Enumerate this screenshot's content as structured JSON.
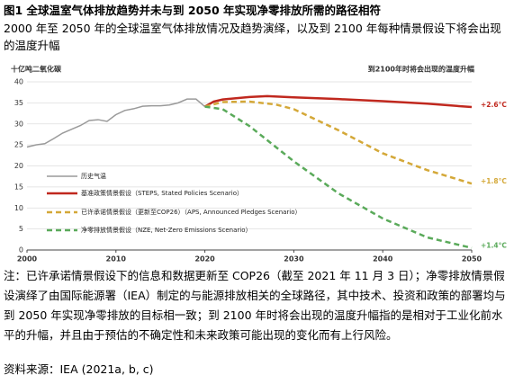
{
  "chart_data": {
    "type": "line",
    "title": "图1  全球温室气体排放趋势并未与到 2050 年实现净零排放所需的路径相符",
    "subtitle": "2000 年至 2050 年的全球温室气体排放情况及趋势演绎，以及到 2100 年每种情景假设下将会出现的温度升幅",
    "y_label": "十亿吨二氧化碳",
    "right_label": "到2100年时将会出现的温度升幅",
    "note": "注：已许承诺情景假设下的信息和数据更新至 COP26（截至 2021 年 11 月 3 日）；净零排放情景假设演绎了由国际能源署（IEA）制定的与能源排放相关的全球路径，其中技术、投资和政策的部署均与到 2050 年实现净零排放的目标相一致；到 2100 年时将会出现的温度升幅指的是相对于工业化前水平的升幅，并且由于预估的不确定性和未来政策可能出现的变化而有上行风险。",
    "source": "资料来源：IEA (2021a, b, c)",
    "xlim": [
      2000,
      2050
    ],
    "xticks": [
      2000,
      2010,
      2020,
      2030,
      2040,
      2050
    ],
    "ylim": [
      0,
      40
    ],
    "yticks": [
      0,
      5,
      10,
      15,
      20,
      25,
      30,
      35,
      40
    ],
    "grid": true,
    "series": [
      {
        "name": "历史气温",
        "color": "#9a9a9a",
        "dashed": false,
        "x": [
          2000,
          2001,
          2002,
          2003,
          2004,
          2005,
          2006,
          2007,
          2008,
          2009,
          2010,
          2011,
          2012,
          2013,
          2014,
          2015,
          2016,
          2017,
          2018,
          2019,
          2020
        ],
        "values": [
          24.5,
          25,
          25.3,
          26.5,
          27.8,
          28.7,
          29.6,
          30.8,
          31,
          30.6,
          32.2,
          33.2,
          33.6,
          34.2,
          34.3,
          34.3,
          34.5,
          35,
          35.9,
          35.9,
          34.1
        ]
      },
      {
        "name": "基准政策情景假设（STEPS, Stated Policies Scenario）",
        "color": "#c0281e",
        "dashed": false,
        "end_label": "+2.6°C",
        "x": [
          2020,
          2021,
          2022,
          2025,
          2027,
          2030,
          2035,
          2040,
          2045,
          2050
        ],
        "values": [
          34.1,
          35.3,
          35.8,
          36.4,
          36.6,
          36.3,
          35.9,
          35.4,
          34.8,
          34.0
        ]
      },
      {
        "name": "已许承诺情景假设（更新至COP26）（APS, Announced Pledges Scenario）",
        "color": "#d4a838",
        "dashed": true,
        "end_label": "+1.8°C",
        "x": [
          2020,
          2022,
          2025,
          2028,
          2030,
          2035,
          2040,
          2045,
          2050
        ],
        "values": [
          34.1,
          35.2,
          35.3,
          34.6,
          33.5,
          28.5,
          23,
          19,
          15.8
        ]
      },
      {
        "name": "净零排放情景假设（NZE, Net-Zero Emissions Scenario）",
        "color": "#5aaa5a",
        "dashed": true,
        "end_label": "+1.4°C",
        "x": [
          2020,
          2022,
          2025,
          2030,
          2035,
          2040,
          2045,
          2050
        ],
        "values": [
          34.1,
          33.5,
          29.5,
          21.1,
          13.5,
          7.5,
          3,
          0.5
        ]
      }
    ]
  }
}
